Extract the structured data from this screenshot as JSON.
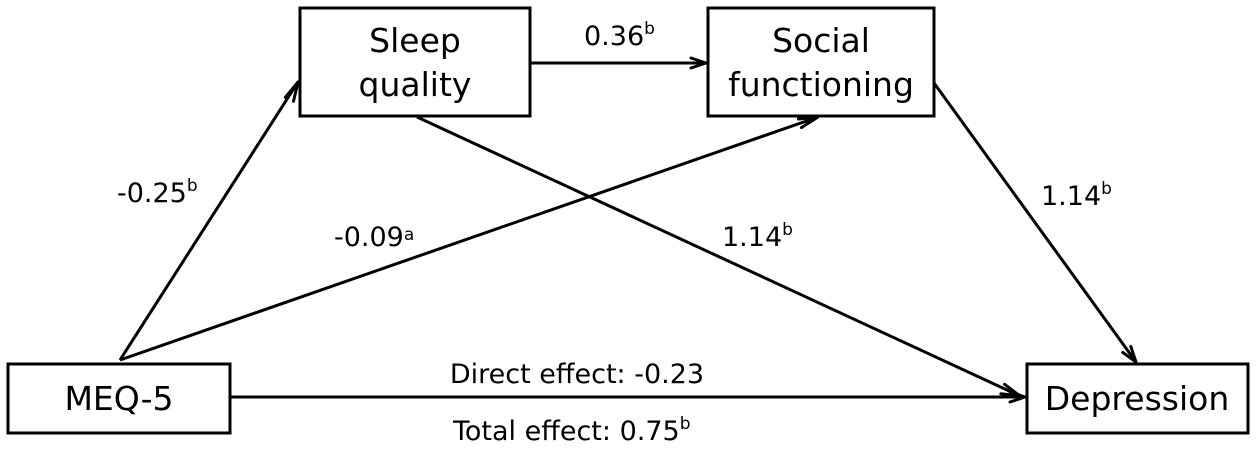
{
  "nodes": {
    "sleep_quality": [
      "Sleep",
      "quality"
    ],
    "social_functioning": [
      "Social",
      "functioning"
    ],
    "meq5": "MEQ-5",
    "depression": "Depression"
  },
  "paths": {
    "meq_to_sleep": {
      "value": "-0.25",
      "sup": "b"
    },
    "meq_to_social": {
      "value": "-0.09",
      "sup": "a"
    },
    "sleep_to_social": {
      "value": "0.36",
      "sup": "b"
    },
    "sleep_to_depression": {
      "value": "1.14",
      "sup": "b"
    },
    "social_to_depression": {
      "value": "1.14",
      "sup": "b"
    },
    "direct_effect": {
      "text": "Direct effect: -0.23"
    },
    "total_effect": {
      "text": "Total effect: 0.75",
      "sup": "b"
    }
  }
}
